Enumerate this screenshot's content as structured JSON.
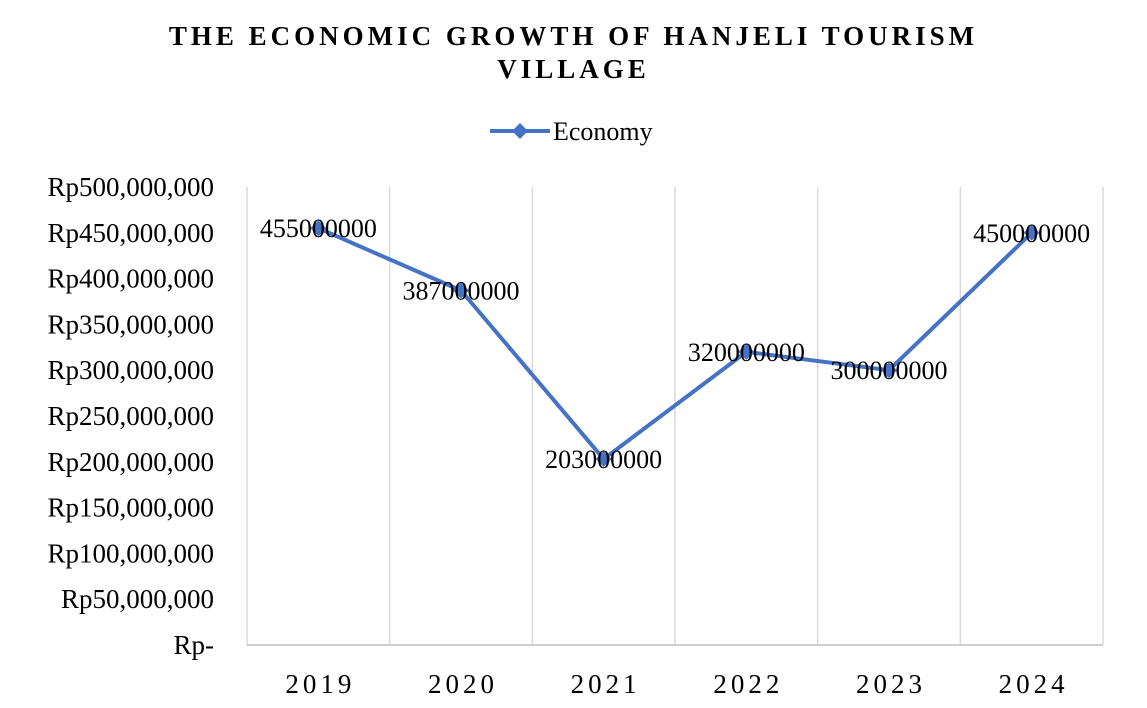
{
  "chart_data": {
    "type": "line",
    "title_lines": [
      "THE ECONOMIC GROWTH OF HANJELI TOURISM",
      "VILLAGE"
    ],
    "categories": [
      "2019",
      "2020",
      "2021",
      "2022",
      "2023",
      "2024"
    ],
    "series": [
      {
        "name": "Economy",
        "values": [
          455000000,
          387000000,
          203000000,
          320000000,
          300000000,
          450000000
        ],
        "data_labels": [
          "455000000",
          "387000000",
          "203000000",
          "320000000",
          "300000000",
          "450000000"
        ],
        "color": "#4472C4",
        "marker": "diamond"
      }
    ],
    "y_ticks": [
      0,
      50000000,
      100000000,
      150000000,
      200000000,
      250000000,
      300000000,
      350000000,
      400000000,
      450000000,
      500000000
    ],
    "y_tick_labels": [
      "Rp-",
      "Rp50,000,000",
      "Rp100,000,000",
      "Rp150,000,000",
      "Rp200,000,000",
      "Rp250,000,000",
      "Rp300,000,000",
      "Rp350,000,000",
      "Rp400,000,000",
      "Rp450,000,000",
      "Rp500,000,000"
    ],
    "ylim": [
      0,
      500000000
    ],
    "xlabel": "",
    "ylabel": "",
    "grid": "vertical",
    "legend_position": "top"
  },
  "colors": {
    "series": "#4472C4",
    "grid": "#d9d9d9",
    "axis": "#bfbfbf"
  }
}
